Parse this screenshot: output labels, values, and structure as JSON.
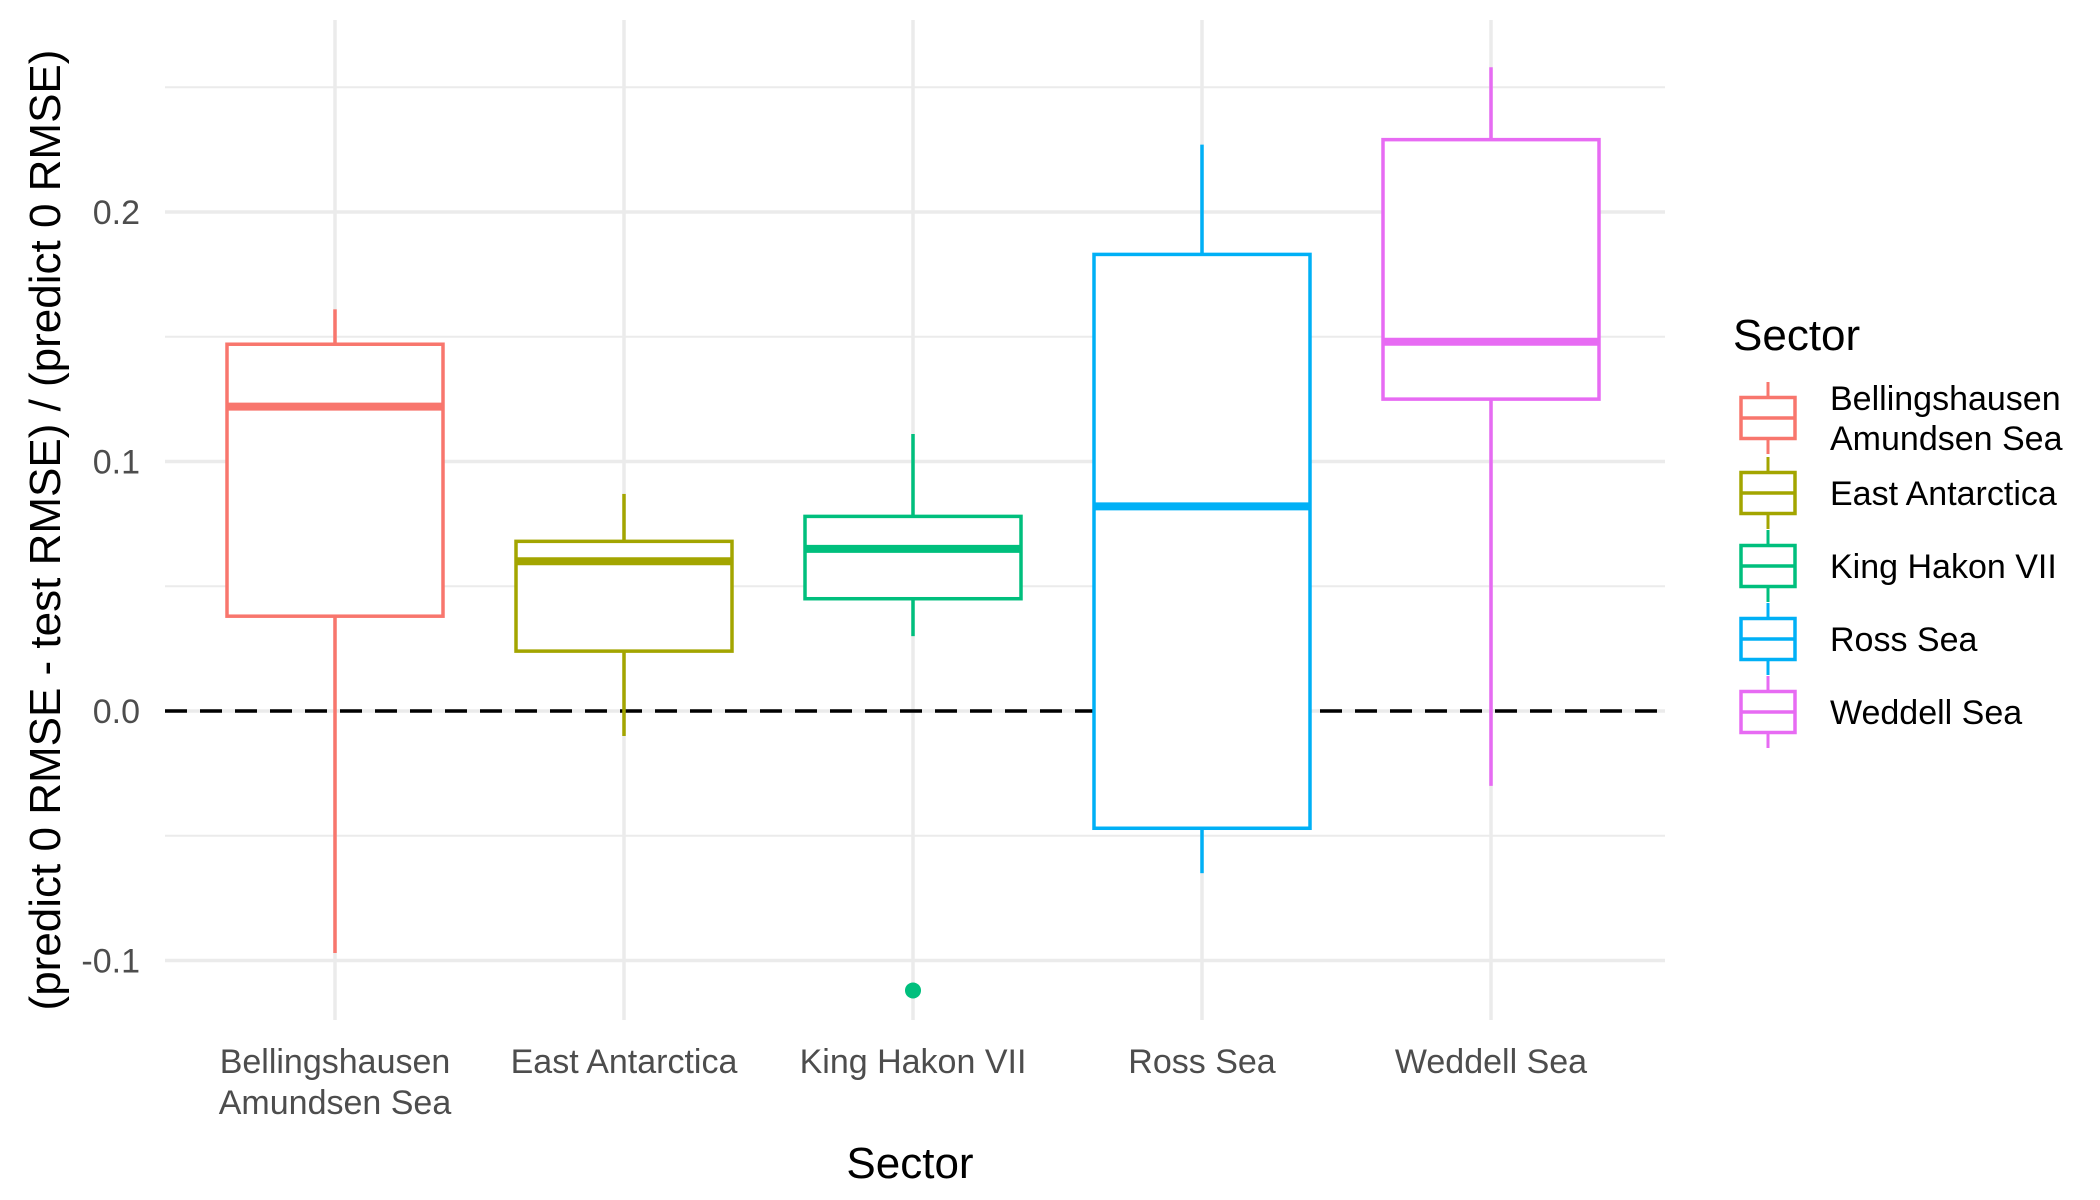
{
  "chart_data": {
    "type": "boxplot",
    "title": "",
    "xlabel": "Sector",
    "ylabel": "(predict 0 RMSE - test RMSE) / (predict 0 RMSE)",
    "ylim": [
      -0.128,
      0.27
    ],
    "y_ticks": [
      "-0.1",
      "0.0",
      "0.1",
      "0.2"
    ],
    "y_tick_values": [
      -0.1,
      0.0,
      0.1,
      0.2
    ],
    "grid": true,
    "reference_line": {
      "y": 0.0,
      "style": "dashed",
      "color": "#000000"
    },
    "legend": {
      "title": "Sector",
      "position": "right"
    },
    "categories": [
      {
        "label_lines": [
          "Bellingshausen",
          "Amundsen Sea"
        ],
        "color": "#F8766D",
        "whisker_low": -0.097,
        "q1": 0.038,
        "median": 0.122,
        "q3": 0.147,
        "whisker_high": 0.161,
        "outliers": []
      },
      {
        "label_lines": [
          "East Antarctica"
        ],
        "color": "#A3A500",
        "whisker_low": -0.01,
        "q1": 0.024,
        "median": 0.06,
        "q3": 0.068,
        "whisker_high": 0.087,
        "outliers": []
      },
      {
        "label_lines": [
          "King Hakon VII"
        ],
        "color": "#00BF7D",
        "whisker_low": 0.03,
        "q1": 0.045,
        "median": 0.065,
        "q3": 0.078,
        "whisker_high": 0.111,
        "outliers": [
          -0.112
        ]
      },
      {
        "label_lines": [
          "Ross Sea"
        ],
        "color": "#00B0F6",
        "whisker_low": -0.065,
        "q1": -0.047,
        "median": 0.082,
        "q3": 0.183,
        "whisker_high": 0.227,
        "outliers": []
      },
      {
        "label_lines": [
          "Weddell Sea"
        ],
        "color": "#E76BF3",
        "whisker_low": -0.03,
        "q1": 0.125,
        "median": 0.148,
        "q3": 0.229,
        "whisker_high": 0.258,
        "outliers": []
      }
    ]
  }
}
